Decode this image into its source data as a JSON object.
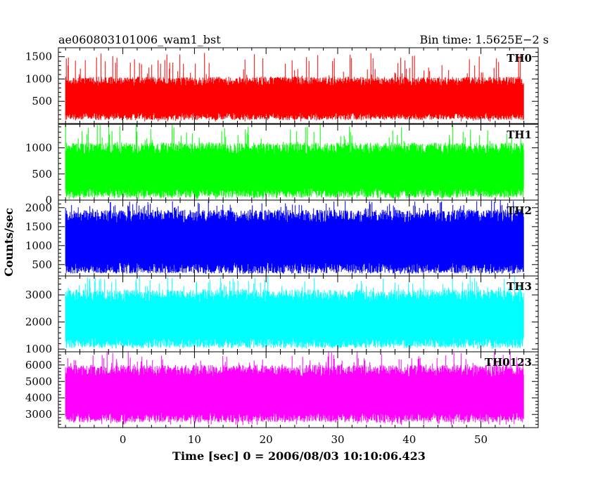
{
  "header": {
    "title": "ae060803101006_wam1_bst",
    "bin_time": "Bin time: 1.5625E−2 s"
  },
  "chart_data": {
    "type": "line",
    "title": "ae060803101006_wam1_bst",
    "subtitle": "Bin time: 1.5625E−2 s",
    "xlabel": "Time [sec] 0 = 2006/08/03 10:10:06.423",
    "ylabel": "Counts/sec",
    "xlim": [
      -9,
      58
    ],
    "x_data_range": [
      -8,
      56
    ],
    "bin_time_s": 0.015625,
    "x_ticks": [
      0,
      10,
      20,
      30,
      40,
      50
    ],
    "grid": false,
    "legend": "none",
    "panels": [
      {
        "series_name": "TH0",
        "color": "#ff0000",
        "ylim": [
          0,
          1700
        ],
        "y_ticks": [
          500,
          1000,
          1500
        ],
        "typical_low": 130,
        "typical_high": 1050,
        "spike_low": 40,
        "spike_high": 1600
      },
      {
        "series_name": "TH1",
        "color": "#00ff00",
        "ylim": [
          0,
          1450
        ],
        "y_ticks": [
          0,
          500,
          1000
        ],
        "typical_low": 100,
        "typical_high": 1100,
        "spike_low": 20,
        "spike_high": 1450
      },
      {
        "series_name": "TH2",
        "color": "#0000ff",
        "ylim": [
          200,
          2200
        ],
        "y_ticks": [
          500,
          1000,
          1500,
          2000
        ],
        "typical_low": 350,
        "typical_high": 1950,
        "spike_low": 250,
        "spike_high": 2200
      },
      {
        "series_name": "TH3",
        "color": "#00ffff",
        "ylim": [
          900,
          3700
        ],
        "y_ticks": [
          1000,
          2000,
          3000
        ],
        "typical_low": 1150,
        "typical_high": 3200,
        "spike_low": 1000,
        "spike_high": 3700
      },
      {
        "series_name": "TH0123",
        "color": "#ff00ff",
        "ylim": [
          2200,
          6800
        ],
        "y_ticks": [
          3000,
          4000,
          5000,
          6000
        ],
        "typical_low": 2700,
        "typical_high": 6000,
        "spike_low": 2350,
        "spike_high": 6800
      }
    ]
  }
}
